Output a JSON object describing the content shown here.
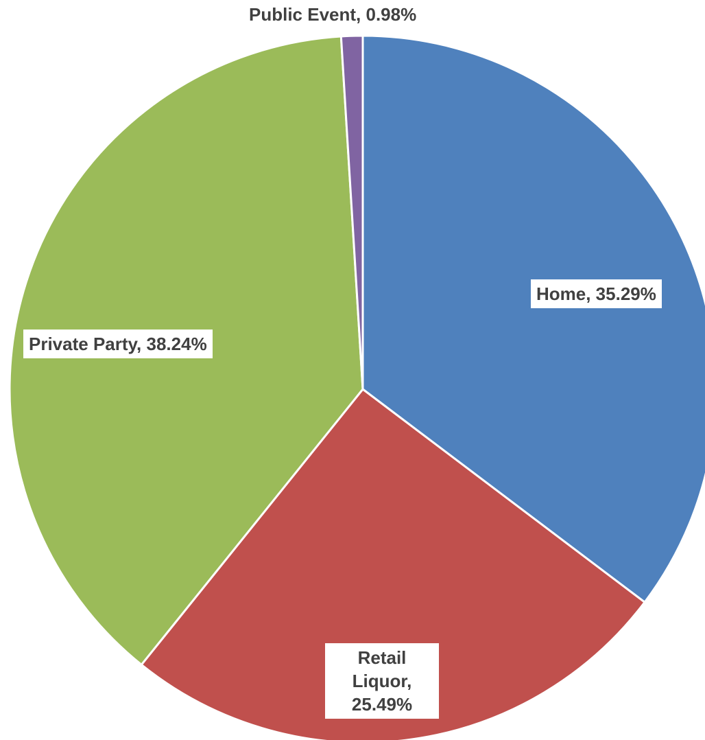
{
  "chart_data": {
    "type": "pie",
    "slices": [
      {
        "name": "Home",
        "value": 35.29,
        "label": "Home, 35.29%",
        "color": "#4F81BD"
      },
      {
        "name": "Retail Liquor",
        "value": 25.49,
        "label": "Retail Liquor, 25.49%",
        "color": "#C0504D"
      },
      {
        "name": "Private Party",
        "value": 38.24,
        "label": "Private Party, 38.24%",
        "color": "#9BBB59"
      },
      {
        "name": "Public Event",
        "value": 0.98,
        "label": "Public Event, 0.98%",
        "color": "#8064A2"
      }
    ],
    "start_angle": "12 o'clock",
    "direction": "clockwise"
  }
}
